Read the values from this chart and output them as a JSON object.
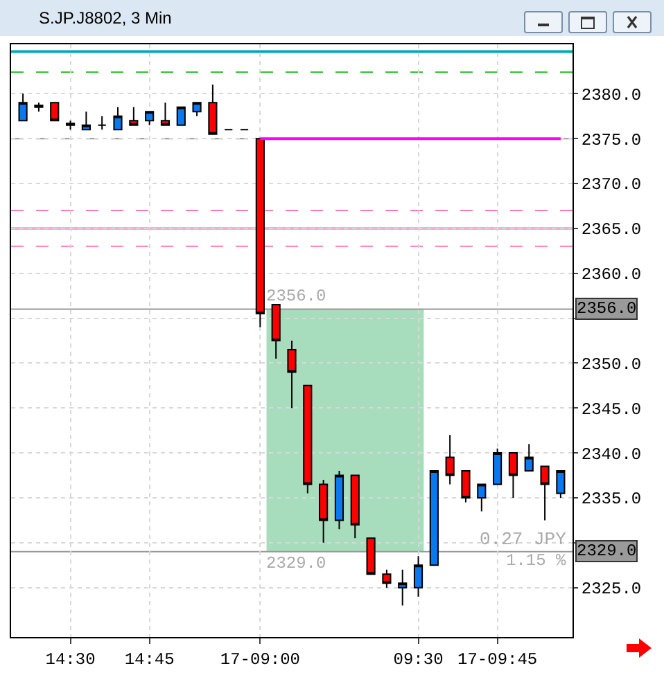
{
  "chart_data": {
    "type": "candlestick",
    "title": "S.JP.J8802, 3 Min",
    "categories": [
      null,
      null,
      null,
      "14:30",
      null,
      null,
      null,
      null,
      "14:45",
      null,
      null,
      null,
      null,
      null,
      null,
      "17-09:00",
      null,
      null,
      null,
      null,
      null,
      null,
      null,
      null,
      null,
      "09:30",
      null,
      null,
      null,
      null,
      "17-09:45",
      null,
      null,
      null,
      null
    ],
    "ohlc": [
      [
        2377,
        2380,
        2377,
        2379
      ],
      [
        2378.5,
        2379,
        2378,
        2378.7
      ],
      [
        2379,
        2379,
        2377,
        2377
      ],
      [
        2376.5,
        2377,
        2376,
        2376.7
      ],
      [
        2376,
        2378,
        2376,
        2376.5
      ],
      [
        2376.5,
        2377.5,
        2376,
        2376.5
      ],
      [
        2376,
        2378.5,
        2376,
        2377.5
      ],
      [
        2377,
        2378.5,
        2376.5,
        2376.5
      ],
      [
        2377,
        2378,
        2376.5,
        2378
      ],
      [
        2377,
        2379,
        2376.5,
        2376.5
      ],
      [
        2376.5,
        2378.5,
        2376.5,
        2378.5
      ],
      [
        2378,
        2379,
        2377.5,
        2379
      ],
      [
        2379,
        2381,
        2375.5,
        2375.5
      ],
      [
        2376,
        2376,
        2376,
        2376
      ],
      [
        2376,
        2376,
        2376,
        2376
      ],
      [
        2375,
        2375,
        2354,
        2355.5
      ],
      [
        2356.5,
        2356.5,
        2350.5,
        2352.5
      ],
      [
        2351.5,
        2352.5,
        2345,
        2349
      ],
      [
        2347.5,
        2347.5,
        2335.5,
        2336.5
      ],
      [
        2336.5,
        2337,
        2330,
        2332.5
      ],
      [
        2332.5,
        2338,
        2331.5,
        2337.5
      ],
      [
        2337.5,
        2337.5,
        2330.5,
        2332
      ],
      [
        2330.5,
        2330.5,
        2326.5,
        2326.5
      ],
      [
        2326.5,
        2327,
        2325,
        2325.5
      ],
      [
        2325,
        2327,
        2323,
        2325.5
      ],
      [
        2325,
        2328.5,
        2324,
        2327.5
      ],
      [
        2327.5,
        2338,
        2327.5,
        2338
      ],
      [
        2339.5,
        2342,
        2336.5,
        2337.5
      ],
      [
        2338,
        2338,
        2334.5,
        2335
      ],
      [
        2335,
        2336.5,
        2333.5,
        2336.5
      ],
      [
        2336.5,
        2340.5,
        2336.5,
        2340
      ],
      [
        2340,
        2340,
        2335,
        2337.5
      ],
      [
        2338,
        2341,
        2338,
        2339.5
      ],
      [
        2338.5,
        2338.5,
        2332.5,
        2336.5
      ],
      [
        2335.5,
        2338,
        2335,
        2338
      ]
    ],
    "colors": [
      "#0a78f0",
      "#000000",
      "#ff0000",
      "#000000",
      "#0a78f0",
      "#000000",
      "#0a78f0",
      "#ff0000",
      "#0a78f0",
      "#ff0000",
      "#0a78f0",
      "#0a78f0",
      "#ff0000",
      "#000000",
      "#000000",
      "#ff0000",
      "#ff0000",
      "#ff0000",
      "#ff0000",
      "#ff0000",
      "#0a78f0",
      "#ff0000",
      "#ff0000",
      "#ff0000",
      "#0a78f0",
      "#0a78f0",
      "#0a78f0",
      "#ff0000",
      "#ff0000",
      "#0a78f0",
      "#0a78f0",
      "#ff0000",
      "#0a78f0",
      "#ff0000",
      "#0a78f0"
    ],
    "series": [
      {
        "type": "line",
        "color": "#ff00ff",
        "values": [
          null,
          null,
          null,
          null,
          null,
          null,
          null,
          null,
          null,
          null,
          null,
          null,
          null,
          null,
          null,
          2375,
          2375,
          2375,
          2375,
          2375,
          2375,
          2375,
          2375,
          2375,
          2375,
          2375,
          2375,
          2375,
          2375,
          2375,
          2375,
          2375,
          2375,
          2375,
          2375
        ]
      }
    ],
    "ylim": [
      2319.5,
      2385.5
    ],
    "yticks": [
      {
        "value": 2325,
        "label": "2325.0"
      },
      {
        "value": 2330,
        "label": null
      },
      {
        "value": 2335,
        "label": "2335.0"
      },
      {
        "value": 2340,
        "label": "2340.0"
      },
      {
        "value": 2345,
        "label": "2345.0"
      },
      {
        "value": 2350,
        "label": "2350.0"
      },
      {
        "value": 2355,
        "label": null
      },
      {
        "value": 2360,
        "label": "2360.0"
      },
      {
        "value": 2365,
        "label": "2365.0"
      },
      {
        "value": 2370,
        "label": "2370.0"
      },
      {
        "value": 2375,
        "label": "2375.0"
      },
      {
        "value": 2380,
        "label": "2380.0"
      }
    ],
    "grid": true,
    "ref_lines": [
      {
        "axis": "y",
        "value": 2384.7,
        "color": "#00aab4",
        "line_style": "solid"
      },
      {
        "axis": "y",
        "value": 2382.4,
        "color": "#22bb22",
        "line_style": "dashed"
      },
      {
        "axis": "y",
        "value": 2375,
        "color": "#999999",
        "line_style": "dashed"
      },
      {
        "axis": "y",
        "value": 2367,
        "color": "#ff77bb",
        "line_style": "dashed"
      },
      {
        "axis": "y",
        "value": 2365,
        "color": "#ffaad0",
        "line_style": "solid"
      },
      {
        "axis": "y",
        "value": 2363,
        "color": "#ff77bb",
        "line_style": "dashed"
      },
      {
        "axis": "y",
        "value": 2356,
        "label": "2356.0",
        "color": "#999999",
        "line_style": "solid"
      },
      {
        "axis": "y",
        "value": 2329,
        "label": "2329.0",
        "color": "#999999",
        "line_style": "solid"
      }
    ],
    "bands": [
      {
        "axis": "y",
        "from": 2329,
        "to": 2356,
        "color": "#9dd8b6"
      }
    ],
    "annotations": [
      "0.27 JPY",
      "1.15 %"
    ]
  }
}
